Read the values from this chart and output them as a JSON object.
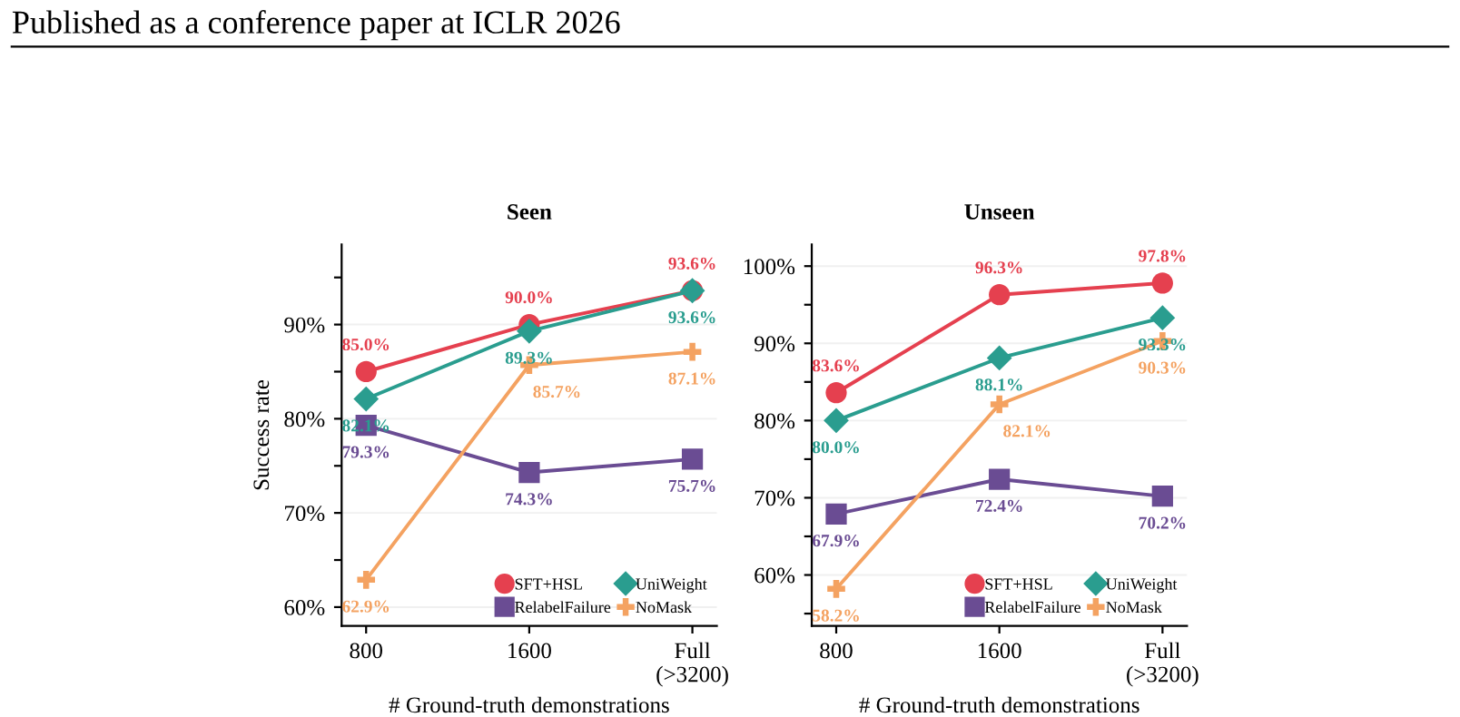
{
  "chart_data": [
    {
      "type": "line",
      "title": "Seen",
      "xlabel": "# Ground-truth demonstrations",
      "ylabel": "Success rate",
      "annotations": [
        "Published as a conference paper at ICLR 2026"
      ],
      "categories": [
        "800",
        "1600",
        "Full\n(>3200)"
      ],
      "ylim": [
        58,
        98.5
      ],
      "yticks": [
        {
          "value": 60,
          "label": "60%"
        },
        {
          "value": 65,
          "label": null
        },
        {
          "value": 70,
          "label": "70%"
        },
        {
          "value": 75,
          "label": null
        },
        {
          "value": 80,
          "label": "80%"
        },
        {
          "value": 85,
          "label": null
        },
        {
          "value": 90,
          "label": "90%"
        },
        {
          "value": 95,
          "label": null
        }
      ],
      "grid": "y",
      "legend": "bottom right",
      "series": [
        {
          "name": "SFT+HSL",
          "color": "#e5404f",
          "marker": "circle",
          "values": [
            85.0,
            90.0,
            93.6
          ],
          "value_labels": [
            "85.0%",
            "90.0%",
            "93.6%"
          ]
        },
        {
          "name": "UniWeight",
          "color": "#2a9d8f",
          "marker": "diamond",
          "values": [
            82.1,
            89.3,
            93.6
          ],
          "value_labels": [
            "82.1%",
            "89.3%",
            "93.6%"
          ]
        },
        {
          "name": "RelabelFailure",
          "color": "#6a4c93",
          "marker": "square",
          "values": [
            79.3,
            74.3,
            75.7
          ],
          "value_labels": [
            "79.3%",
            "74.3%",
            "75.7%"
          ]
        },
        {
          "name": "NoMask",
          "color": "#f4a261",
          "marker": "cross",
          "values": [
            62.9,
            85.7,
            87.1
          ],
          "value_labels": [
            "62.9%",
            "85.7%",
            "87.1%"
          ]
        }
      ]
    },
    {
      "type": "line",
      "title": "Unseen",
      "xlabel": "# Ground-truth demonstrations",
      "categories": [
        "800",
        "1600",
        "Full\n(>3200)"
      ],
      "ylim": [
        53.4,
        102.8
      ],
      "yticks": [
        {
          "value": 55,
          "label": null
        },
        {
          "value": 60,
          "label": "60%"
        },
        {
          "value": 65,
          "label": null
        },
        {
          "value": 70,
          "label": "70%"
        },
        {
          "value": 75,
          "label": null
        },
        {
          "value": 80,
          "label": "80%"
        },
        {
          "value": 85,
          "label": null
        },
        {
          "value": 90,
          "label": "90%"
        },
        {
          "value": 95,
          "label": null
        },
        {
          "value": 100,
          "label": "100%"
        }
      ],
      "grid": "y",
      "legend": "bottom right",
      "series": [
        {
          "name": "SFT+HSL",
          "color": "#e5404f",
          "marker": "circle",
          "values": [
            83.6,
            96.3,
            97.8
          ],
          "value_labels": [
            "83.6%",
            "96.3%",
            "97.8%"
          ]
        },
        {
          "name": "UniWeight",
          "color": "#2a9d8f",
          "marker": "diamond",
          "values": [
            80.0,
            88.1,
            93.3
          ],
          "value_labels": [
            "80.0%",
            "88.1%",
            "93.3%"
          ]
        },
        {
          "name": "RelabelFailure",
          "color": "#6a4c93",
          "marker": "square",
          "values": [
            67.9,
            72.4,
            70.2
          ],
          "value_labels": [
            "67.9%",
            "72.4%",
            "70.2%"
          ]
        },
        {
          "name": "NoMask",
          "color": "#f4a261",
          "marker": "cross",
          "values": [
            58.2,
            82.1,
            90.3
          ],
          "value_labels": [
            "58.2%",
            "82.1%",
            "90.3%"
          ]
        }
      ]
    }
  ]
}
